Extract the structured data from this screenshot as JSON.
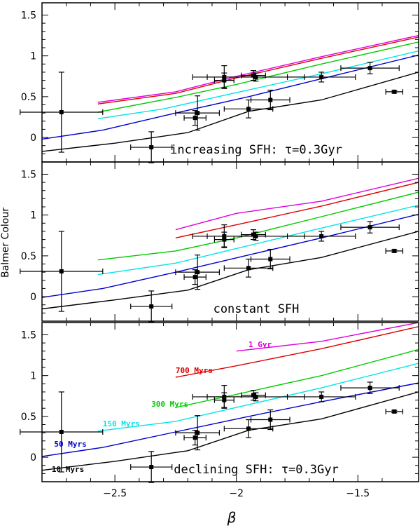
{
  "chart_data": {
    "type": "line",
    "xlabel": "β",
    "ylabel": "Balmer Colour",
    "xlim": [
      -2.8,
      -1.25
    ],
    "ylim": [
      -0.3,
      1.65
    ],
    "xticks": [
      -2.5,
      -2,
      -1.5
    ],
    "xtick_labels": [
      "−2.5",
      "−2",
      "−1.5"
    ],
    "yticks": [
      0,
      0.5,
      1,
      1.5
    ],
    "ytick_labels": [
      "0",
      "0.5",
      "1",
      "1.5"
    ],
    "age_colors": {
      "10 Myrs": "#000000",
      "50 Myrs": "#0000cc",
      "150 Myrs": "#00e5e5",
      "300 Myrs": "#00cc00",
      "700 Myrs": "#dd0000",
      "1 Gyr": "#dd00dd"
    },
    "observations": [
      {
        "x": -2.72,
        "y": 0.31,
        "xerr": 0.17,
        "yerr": 0.49
      },
      {
        "x": -2.35,
        "y": -0.12,
        "xerr": 0.085,
        "yerr": 0.19
      },
      {
        "x": -2.17,
        "y": 0.24,
        "xerr": 0.045,
        "yerr": 0.09
      },
      {
        "x": -2.16,
        "y": 0.3,
        "xerr": 0.09,
        "yerr": 0.21
      },
      {
        "x": -2.05,
        "y": 0.74,
        "xerr": 0.13,
        "yerr": 0.14
      },
      {
        "x": -2.05,
        "y": 0.7,
        "xerr": 0.04,
        "yerr": 0.09
      },
      {
        "x": -1.95,
        "y": 0.35,
        "xerr": 0.1,
        "yerr": 0.11
      },
      {
        "x": -1.93,
        "y": 0.76,
        "xerr": 0.05,
        "yerr": 0.06
      },
      {
        "x": -1.92,
        "y": 0.74,
        "xerr": 0.2,
        "yerr": 0.05
      },
      {
        "x": -1.86,
        "y": 0.46,
        "xerr": 0.08,
        "yerr": 0.12
      },
      {
        "x": -1.65,
        "y": 0.74,
        "xerr": 0.14,
        "yerr": 0.06
      },
      {
        "x": -1.45,
        "y": 0.85,
        "xerr": 0.12,
        "yerr": 0.07
      },
      {
        "x": -1.35,
        "y": 0.56,
        "xerr": 0.035,
        "yerr": 0.015
      }
    ],
    "panels": [
      {
        "annotation": "increasing SFH: τ=0.3Gyr",
        "series": [
          {
            "name": "10 Myrs",
            "x": [
              -2.8,
              -2.5,
              -2.2,
              -1.95,
              -1.65,
              -1.25
            ],
            "y": [
              -0.17,
              -0.07,
              0.06,
              0.32,
              0.46,
              0.8
            ]
          },
          {
            "name": "50 Myrs",
            "x": [
              -2.8,
              -2.55,
              -2.25,
              -1.95,
              -1.65,
              -1.25
            ],
            "y": [
              -0.02,
              0.09,
              0.3,
              0.5,
              0.72,
              1.01
            ]
          },
          {
            "name": "150 Myrs",
            "x": [
              -2.57,
              -2.3,
              -2.0,
              -1.65,
              -1.25
            ],
            "y": [
              0.23,
              0.35,
              0.55,
              0.78,
              1.06
            ]
          },
          {
            "name": "300 Myrs",
            "x": [
              -2.57,
              -2.25,
              -2.0,
              -1.65,
              -1.25
            ],
            "y": [
              0.31,
              0.49,
              0.65,
              0.9,
              1.17
            ]
          },
          {
            "name": "700 Myrs",
            "x": [
              -2.57,
              -2.25,
              -2.0,
              -1.65,
              -1.25
            ],
            "y": [
              0.41,
              0.54,
              0.73,
              0.97,
              1.23
            ]
          },
          {
            "name": "1 Gyr",
            "x": [
              -2.57,
              -2.25,
              -2.0,
              -1.65,
              -1.25
            ],
            "y": [
              0.43,
              0.56,
              0.75,
              0.99,
              1.25
            ]
          }
        ]
      },
      {
        "annotation": "constant SFH",
        "series": [
          {
            "name": "10 Myrs",
            "x": [
              -2.8,
              -2.5,
              -2.2,
              -1.95,
              -1.65,
              -1.25
            ],
            "y": [
              -0.15,
              -0.04,
              0.08,
              0.33,
              0.48,
              0.8
            ]
          },
          {
            "name": "50 Myrs",
            "x": [
              -2.8,
              -2.55,
              -2.25,
              -1.95,
              -1.65,
              -1.25
            ],
            "y": [
              -0.01,
              0.1,
              0.3,
              0.51,
              0.72,
              1.01
            ]
          },
          {
            "name": "150 Myrs",
            "x": [
              -2.57,
              -2.25,
              -2.0,
              -1.65,
              -1.25
            ],
            "y": [
              0.27,
              0.41,
              0.59,
              0.84,
              1.12
            ]
          },
          {
            "name": "300 Myrs",
            "x": [
              -2.57,
              -2.25,
              -2.0,
              -1.65,
              -1.25
            ],
            "y": [
              0.45,
              0.56,
              0.72,
              0.98,
              1.28
            ]
          },
          {
            "name": "700 Myrs",
            "x": [
              -2.25,
              -2.0,
              -1.65,
              -1.25
            ],
            "y": [
              0.72,
              0.88,
              1.11,
              1.4
            ]
          },
          {
            "name": "1 Gyr",
            "x": [
              -2.25,
              -2.0,
              -1.65,
              -1.25
            ],
            "y": [
              0.82,
              1.02,
              1.17,
              1.45
            ]
          }
        ]
      },
      {
        "annotation": "declining SFH: τ=0.3Gyr",
        "series": [
          {
            "name": "10 Myrs",
            "x": [
              -2.8,
              -2.5,
              -2.2,
              -1.95,
              -1.65,
              -1.25
            ],
            "y": [
              -0.16,
              -0.05,
              0.08,
              0.33,
              0.47,
              0.8
            ]
          },
          {
            "name": "50 Myrs",
            "x": [
              -2.8,
              -2.55,
              -2.25,
              -1.95,
              -1.65,
              -1.25
            ],
            "y": [
              0.01,
              0.12,
              0.31,
              0.5,
              0.68,
              0.91
            ]
          },
          {
            "name": "150 Myrs",
            "x": [
              -2.57,
              -2.25,
              -2.0,
              -1.65,
              -1.25
            ],
            "y": [
              0.32,
              0.44,
              0.61,
              0.85,
              1.15
            ]
          },
          {
            "name": "300 Myrs",
            "x": [
              -2.25,
              -2.0,
              -1.65,
              -1.25
            ],
            "y": [
              0.61,
              0.77,
              1.0,
              1.32
            ]
          },
          {
            "name": "700 Myrs",
            "x": [
              -2.25,
              -2.0,
              -1.65,
              -1.25
            ],
            "y": [
              0.98,
              1.12,
              1.33,
              1.6
            ]
          },
          {
            "name": "1 Gyr",
            "x": [
              -2.0,
              -1.65,
              -1.25
            ],
            "y": [
              1.3,
              1.42,
              1.65
            ]
          }
        ],
        "curve_labels": [
          {
            "text": "1 Gyr",
            "age": "1 Gyr",
            "x": -1.95,
            "y": 1.35
          },
          {
            "text": "700 Myrs",
            "age": "700 Myrs",
            "x": -2.25,
            "y": 1.03
          },
          {
            "text": "300 Myrs",
            "age": "300 Myrs",
            "x": -2.35,
            "y": 0.62
          },
          {
            "text": "150 Myrs",
            "age": "150 Myrs",
            "x": -2.55,
            "y": 0.38
          },
          {
            "text": "50 Myrs",
            "age": "50 Myrs",
            "x": -2.75,
            "y": 0.13
          },
          {
            "text": "10 Myrs",
            "age": "10 Myrs",
            "x": -2.76,
            "y": -0.18
          }
        ]
      }
    ]
  }
}
